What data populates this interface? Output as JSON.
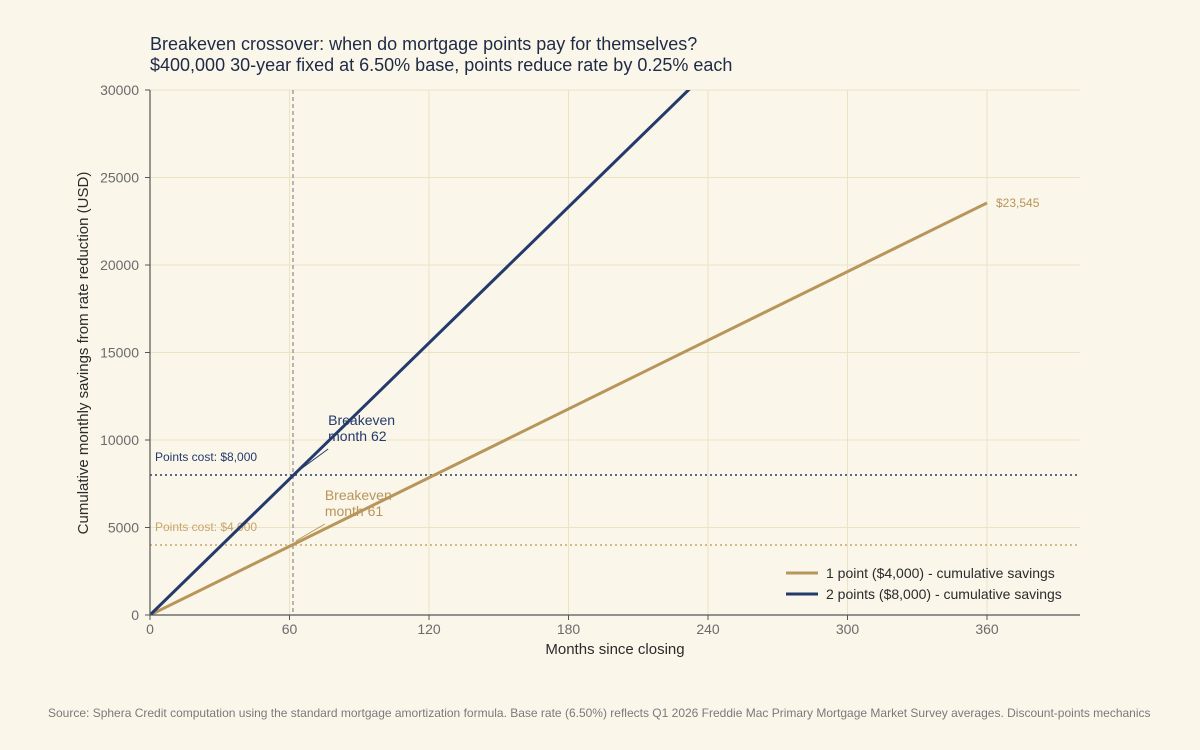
{
  "chart_data": {
    "type": "line",
    "title": "Breakeven crossover: when do mortgage points pay for themselves?",
    "subtitle": "$400,000 30-year fixed at 6.50% base, points reduce rate by 0.25% each",
    "xlabel": "Months since closing",
    "ylabel": "Cumulative monthly savings from rate reduction (USD)",
    "xlim": [
      0,
      400
    ],
    "ylim": [
      0,
      30000
    ],
    "xticks": [
      0,
      60,
      120,
      180,
      240,
      300,
      360
    ],
    "yticks": [
      0,
      5000,
      10000,
      15000,
      20000,
      25000,
      30000
    ],
    "grid": true,
    "legend_position": "bottom-right",
    "series": [
      {
        "name": "1 point ($4,000)  -  cumulative savings",
        "color": "#b8955a",
        "x": [
          0,
          360
        ],
        "y": [
          0,
          23545
        ],
        "end_label": "$23,545"
      },
      {
        "name": "2 points ($8,000)  -  cumulative savings",
        "color": "#243a6b",
        "x": [
          0,
          386
        ],
        "y": [
          0,
          50000
        ],
        "end_label": ""
      }
    ],
    "reference_lines": [
      {
        "value": 8000,
        "label": "Points cost: $8,000",
        "color": "#243a6b"
      },
      {
        "value": 4000,
        "label": "Points cost: $4,000",
        "color": "#c9a46a"
      }
    ],
    "vertical_line": {
      "x": 61.5,
      "color": "#8a8a8a"
    },
    "annotations": [
      {
        "line1": "Breakeven",
        "line2": "month 62",
        "x": 62,
        "y": 8000,
        "color": "#243a6b"
      },
      {
        "line1": "Breakeven",
        "line2": "month 61",
        "x": 61,
        "y": 4000,
        "color": "#b8955a"
      }
    ]
  },
  "source": "Source: Sphera Credit computation using the standard mortgage amortization formula. Base rate (6.50%) reflects Q1 2026 Freddie Mac Primary Mortgage Market Survey averages. Discount-points mechanics"
}
